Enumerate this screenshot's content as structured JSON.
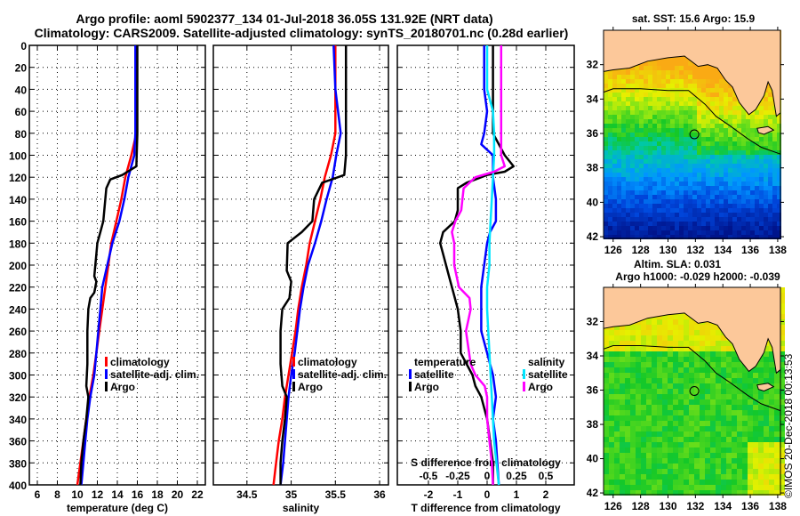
{
  "header": {
    "title_line1": "Argo profile: aoml 5902377_134 01-Jul-2018 36.05S 131.92E (NRT data)",
    "title_line2": "Climatology: CARS2009. Satellite-adjusted climatology: synTS_20180701.nc (0.28d earlier)"
  },
  "colors": {
    "climatology": "#ff0000",
    "satellite": "#0000ff",
    "argo": "#000000",
    "salinity_satellite": "#00e5ff",
    "salinity_argo": "#ff00ff",
    "land": "#fcc89a"
  },
  "chart_data": [
    {
      "type": "line",
      "title": "",
      "xlabel": "temperature (deg C)",
      "ylabel": "",
      "xlim": [
        5.2,
        22.8
      ],
      "ylim": [
        400,
        0
      ],
      "xticks": [
        6,
        8,
        10,
        12,
        14,
        16,
        18,
        20,
        22
      ],
      "yticks": [
        0,
        20,
        40,
        60,
        80,
        100,
        120,
        140,
        160,
        180,
        200,
        220,
        240,
        260,
        280,
        300,
        320,
        340,
        360,
        380,
        400
      ],
      "grid": true,
      "legend": {
        "position": "right-middle",
        "entries": [
          "climatology",
          "satellite-adj. clim.",
          "Argo"
        ]
      },
      "series": [
        {
          "name": "climatology",
          "color": "#ff0000",
          "depth": [
            0,
            80,
            100,
            120,
            140,
            160,
            180,
            200,
            220,
            240,
            260,
            280,
            300,
            320,
            340,
            360,
            380,
            400
          ],
          "values": [
            15.9,
            15.9,
            15.4,
            14.8,
            14.4,
            13.9,
            13.4,
            13.1,
            12.8,
            12.5,
            12.2,
            11.9,
            11.6,
            11.2,
            10.9,
            10.6,
            10.3,
            10.0
          ]
        },
        {
          "name": "satellite-adj. clim.",
          "color": "#0000ff",
          "depth": [
            0,
            80,
            100,
            120,
            140,
            160,
            180,
            200,
            220,
            240,
            260,
            280,
            300,
            320,
            340,
            360,
            380,
            400
          ],
          "values": [
            15.8,
            15.8,
            15.7,
            15.1,
            14.7,
            14.2,
            13.5,
            13.0,
            12.5,
            12.3,
            12.1,
            11.9,
            11.7,
            11.3,
            11.0,
            10.8,
            10.6,
            10.4
          ]
        },
        {
          "name": "Argo",
          "color": "#000000",
          "depth": [
            0,
            80,
            110,
            118,
            122,
            130,
            160,
            170,
            180,
            190,
            210,
            215,
            225,
            230,
            240,
            260,
            290,
            310,
            320,
            340,
            360,
            380,
            400
          ],
          "values": [
            16.0,
            16.0,
            15.9,
            14.5,
            13.3,
            12.9,
            12.6,
            12.3,
            12.0,
            11.9,
            11.7,
            11.9,
            11.7,
            11.3,
            11.1,
            11.0,
            11.0,
            10.9,
            11.1,
            10.9,
            10.6,
            10.4,
            10.3
          ]
        }
      ]
    },
    {
      "type": "line",
      "title": "",
      "xlabel": "salinity",
      "ylabel": "",
      "xlim": [
        34.12,
        36.1
      ],
      "ylim": [
        400,
        0
      ],
      "xticks": [
        34.5,
        35,
        35.5,
        36
      ],
      "grid": true,
      "legend": {
        "position": "right-middle",
        "entries": [
          "climatology",
          "satellite-adj. clim.",
          "Argo"
        ]
      },
      "series": [
        {
          "name": "climatology",
          "color": "#ff0000",
          "depth": [
            0,
            40,
            80,
            100,
            120,
            140,
            160,
            180,
            200,
            220,
            240,
            260,
            280,
            300,
            320,
            340,
            360,
            380,
            400
          ],
          "values": [
            35.5,
            35.5,
            35.5,
            35.45,
            35.38,
            35.33,
            35.27,
            35.21,
            35.17,
            35.12,
            35.08,
            35.05,
            35.01,
            34.97,
            34.93,
            34.9,
            34.86,
            34.83,
            34.8
          ]
        },
        {
          "name": "satellite-adj. clim.",
          "color": "#0000ff",
          "depth": [
            0,
            40,
            60,
            80,
            100,
            120,
            140,
            160,
            180,
            200,
            220,
            240,
            260,
            280,
            300,
            320,
            340,
            360,
            380,
            400
          ],
          "values": [
            35.48,
            35.5,
            35.53,
            35.56,
            35.51,
            35.47,
            35.4,
            35.34,
            35.27,
            35.19,
            35.14,
            35.1,
            35.07,
            35.04,
            35.0,
            34.97,
            34.95,
            34.93,
            34.91,
            34.88
          ]
        },
        {
          "name": "Argo",
          "color": "#000000",
          "depth": [
            0,
            100,
            118,
            125,
            140,
            160,
            170,
            180,
            205,
            215,
            230,
            240,
            260,
            290,
            310,
            320,
            340,
            360,
            380,
            400
          ],
          "values": [
            35.62,
            35.62,
            35.6,
            35.35,
            35.26,
            35.24,
            35.12,
            34.96,
            34.95,
            35.0,
            34.98,
            34.9,
            34.88,
            34.88,
            34.9,
            34.95,
            34.93,
            34.9,
            34.88,
            34.88
          ]
        }
      ]
    },
    {
      "type": "line",
      "title": "",
      "xlabel": "T difference from climatology",
      "xlabel_secondary": "S difference from climatology",
      "ylabel": "",
      "xlim": [
        -3.06,
        2.97
      ],
      "xlim_secondary": [
        -0.765,
        0.7425
      ],
      "ylim": [
        400,
        0
      ],
      "xticks": [
        -2,
        -1,
        0,
        1,
        2
      ],
      "xticks_secondary": [
        -0.5,
        -0.25,
        0,
        0.25,
        0.5
      ],
      "grid": true,
      "legend": {
        "position": "middle",
        "groups": [
          {
            "title": "temperature",
            "entries": [
              "satellite",
              "Argo"
            ]
          },
          {
            "title": "salinity",
            "entries": [
              "satellite",
              "Argo"
            ]
          }
        ]
      },
      "series": [
        {
          "name": "temperature satellite",
          "axis": "T",
          "color": "#0000ff",
          "depth": [
            0,
            40,
            60,
            80,
            90,
            100,
            120,
            140,
            160,
            170,
            180,
            200,
            220,
            240,
            260,
            280,
            300,
            320,
            340,
            360,
            380,
            400
          ],
          "values": [
            -0.1,
            -0.1,
            0.0,
            -0.1,
            -0.2,
            0.2,
            0.2,
            0.3,
            0.3,
            0.1,
            0.0,
            -0.1,
            -0.2,
            -0.2,
            -0.2,
            0.0,
            0.2,
            0.3,
            0.2,
            0.3,
            0.35,
            0.4
          ]
        },
        {
          "name": "temperature Argo",
          "axis": "T",
          "color": "#000000",
          "depth": [
            0,
            80,
            90,
            100,
            110,
            115,
            118,
            125,
            130,
            150,
            160,
            170,
            180,
            190,
            200,
            210,
            230,
            240,
            260,
            280,
            290,
            300,
            310,
            320,
            340,
            360,
            380,
            400
          ],
          "values": [
            0.2,
            0.2,
            0.4,
            0.6,
            0.9,
            0.6,
            0.0,
            -0.7,
            -1.0,
            -1.0,
            -1.1,
            -1.5,
            -1.6,
            -1.5,
            -1.4,
            -1.3,
            -1.1,
            -1.0,
            -0.9,
            -0.9,
            -0.7,
            -0.5,
            -0.4,
            -0.2,
            0.0,
            0.1,
            0.2,
            0.2
          ]
        },
        {
          "name": "salinity satellite",
          "axis": "S",
          "color": "#00e5ff",
          "depth": [
            0,
            40,
            60,
            80,
            100,
            120,
            140,
            160,
            180,
            200,
            220,
            240,
            260,
            280,
            300,
            320,
            340,
            360,
            380,
            400
          ],
          "values": [
            0.0,
            0.0,
            0.05,
            0.06,
            0.06,
            0.05,
            0.04,
            0.03,
            0.02,
            0.02,
            0.0,
            0.0,
            0.01,
            0.02,
            0.03,
            0.04,
            0.05,
            0.06,
            0.08,
            0.1
          ]
        },
        {
          "name": "salinity Argo",
          "axis": "S",
          "color": "#ff00ff",
          "depth": [
            0,
            100,
            110,
            115,
            120,
            130,
            150,
            160,
            170,
            180,
            200,
            220,
            230,
            240,
            250,
            260,
            290,
            300,
            310,
            320,
            340,
            360,
            380,
            400
          ],
          "values": [
            0.12,
            0.12,
            0.15,
            0.06,
            -0.1,
            -0.2,
            -0.22,
            -0.27,
            -0.3,
            -0.28,
            -0.28,
            -0.24,
            -0.15,
            -0.14,
            -0.16,
            -0.18,
            -0.14,
            -0.1,
            -0.02,
            0.0,
            0.0,
            0.02,
            0.04,
            0.05
          ]
        }
      ]
    }
  ],
  "maps": [
    {
      "title": "sat. SST: 15.6 Argo: 15.9",
      "variable": "SST",
      "xticks": [
        126,
        128,
        130,
        132,
        134,
        136,
        138
      ],
      "yticks": [
        -32,
        -34,
        -36,
        -38,
        -40,
        -42
      ],
      "xlim": [
        125.3,
        138.2
      ],
      "ylim": [
        -42.1,
        -30.0
      ],
      "argo_position": {
        "lon": 131.92,
        "lat": -36.05
      }
    },
    {
      "title_line1": "Altim. SLA: 0.031",
      "title_line2": "Argo h1000: -0.029 h2000: -0.039",
      "variable": "SLA",
      "xticks": [
        126,
        128,
        130,
        132,
        134,
        136,
        138
      ],
      "yticks": [
        -32,
        -34,
        -36,
        -38,
        -40,
        -42
      ],
      "xlim": [
        125.3,
        138.2
      ],
      "ylim": [
        -42.1,
        -30.0
      ],
      "argo_position": {
        "lon": 131.92,
        "lat": -36.05
      }
    }
  ],
  "credit": "©IMOS 20-Dec-2018 00:13:53"
}
